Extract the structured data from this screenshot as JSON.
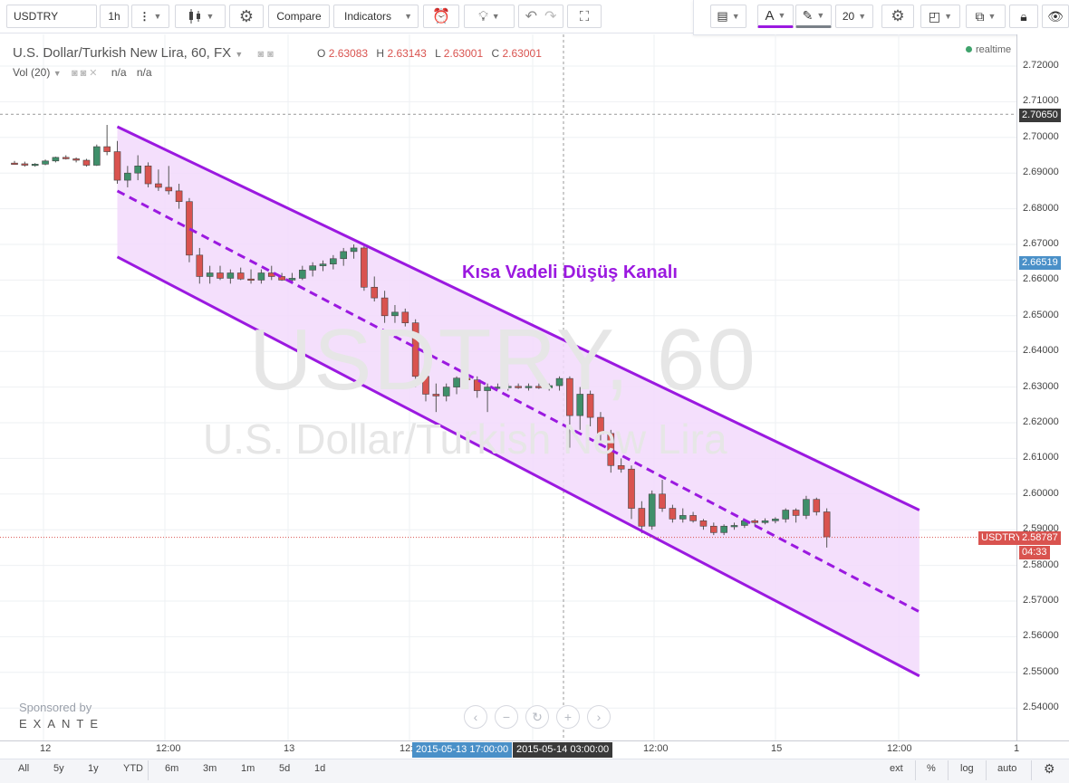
{
  "toolbar": {
    "symbol": "USDTRY",
    "interval": "1h",
    "compare": "Compare",
    "indicators": "Indicators",
    "font_size": "20"
  },
  "legend": {
    "title": "U.S. Dollar/Turkish New Lira, 60, FX",
    "o_label": "O",
    "o": "2.63083",
    "h_label": "H",
    "h": "2.63143",
    "l_label": "L",
    "l": "2.63001",
    "c_label": "C",
    "c": "2.63001",
    "vol": "Vol (20)",
    "na1": "n/a",
    "na2": "n/a",
    "realtime": "realtime"
  },
  "watermark": {
    "line1": "USDTRY, 60",
    "line2": "U.S. Dollar/Turkish New Lira"
  },
  "annotation": "Kısa Vadeli Düşüş Kanalı",
  "sponsor": {
    "label": "Sponsored by",
    "brand": "EXANTE"
  },
  "price_axis": {
    "ticks": [
      "2.72000",
      "2.71000",
      "2.70000",
      "2.69000",
      "2.68000",
      "2.67000",
      "2.66000",
      "2.65000",
      "2.64000",
      "2.63000",
      "2.62000",
      "2.61000",
      "2.60000",
      "2.59000",
      "2.58000",
      "2.57000",
      "2.56000",
      "2.55000",
      "2.54000"
    ],
    "hline_label": "2.70650",
    "channel_label": "2.66519",
    "symbol_tag": "USDTRY",
    "last_price": "2.58787",
    "countdown": "04:33"
  },
  "time_axis": {
    "ticks": [
      "12",
      "12:00",
      "13",
      "12:00",
      "15",
      "12:00",
      "1"
    ],
    "cursor_a": "2015-05-13 17:00:00",
    "cursor_b": "2015-05-14 03:00:00"
  },
  "ranges": [
    "All",
    "5y",
    "1y",
    "YTD",
    "6m",
    "3m",
    "1m",
    "5d",
    "1d"
  ],
  "bottom_right": [
    "ext",
    "%",
    "log",
    "auto"
  ],
  "colors": {
    "up": "#3f8f6a",
    "down": "#d9534f",
    "channel": "#9b19e0",
    "fill": "#f2d9fb",
    "tag_blue": "#4a90c8",
    "tag_dark": "#3a3a3a"
  },
  "chart_data": {
    "type": "candlestick",
    "interval": "60",
    "ylim": [
      2.535,
      2.725
    ],
    "candles": [
      [
        2.6928,
        2.6934,
        2.6924,
        2.6926
      ],
      [
        2.6926,
        2.6932,
        2.6918,
        2.6922
      ],
      [
        2.6922,
        2.6928,
        2.6918,
        2.6925
      ],
      [
        2.6925,
        2.6938,
        2.6922,
        2.6934
      ],
      [
        2.6934,
        2.6946,
        2.693,
        2.6944
      ],
      [
        2.6944,
        2.695,
        2.6938,
        2.694
      ],
      [
        2.694,
        2.6944,
        2.693,
        2.6936
      ],
      [
        2.6936,
        2.694,
        2.6918,
        2.6922
      ],
      [
        2.6922,
        2.698,
        2.692,
        2.6974
      ],
      [
        2.6974,
        2.7035,
        2.695,
        2.696
      ],
      [
        2.696,
        2.699,
        2.687,
        2.688
      ],
      [
        2.688,
        2.692,
        2.686,
        2.69
      ],
      [
        2.69,
        2.695,
        2.688,
        2.692
      ],
      [
        2.692,
        2.693,
        2.686,
        2.687
      ],
      [
        2.687,
        2.691,
        2.685,
        2.686
      ],
      [
        2.686,
        2.692,
        2.684,
        2.685
      ],
      [
        2.685,
        2.687,
        2.68,
        2.682
      ],
      [
        2.682,
        2.683,
        2.665,
        2.667
      ],
      [
        2.667,
        2.669,
        2.659,
        2.661
      ],
      [
        2.661,
        2.664,
        2.659,
        2.662
      ],
      [
        2.662,
        2.664,
        2.66,
        2.6605
      ],
      [
        2.6605,
        2.663,
        2.659,
        2.662
      ],
      [
        2.662,
        2.6635,
        2.66,
        2.6603
      ],
      [
        2.6603,
        2.663,
        2.659,
        2.66
      ],
      [
        2.66,
        2.663,
        2.659,
        2.662
      ],
      [
        2.662,
        2.664,
        2.66,
        2.661
      ],
      [
        2.661,
        2.662,
        2.6598,
        2.66
      ],
      [
        2.66,
        2.662,
        2.6595,
        2.6605
      ],
      [
        2.6605,
        2.664,
        2.66,
        2.6628
      ],
      [
        2.6628,
        2.665,
        2.661,
        2.664
      ],
      [
        2.664,
        2.6655,
        2.6625,
        2.6645
      ],
      [
        2.6645,
        2.667,
        2.663,
        2.666
      ],
      [
        2.666,
        2.669,
        2.664,
        2.668
      ],
      [
        2.668,
        2.67,
        2.666,
        2.669
      ],
      [
        2.669,
        2.67,
        2.657,
        2.658
      ],
      [
        2.658,
        2.661,
        2.654,
        2.655
      ],
      [
        2.655,
        2.657,
        2.648,
        2.65
      ],
      [
        2.65,
        2.653,
        2.648,
        2.651
      ],
      [
        2.651,
        2.652,
        2.647,
        2.648
      ],
      [
        2.648,
        2.649,
        2.63,
        2.633
      ],
      [
        2.633,
        2.634,
        2.626,
        2.628
      ],
      [
        2.628,
        2.631,
        2.623,
        2.6275
      ],
      [
        2.6275,
        2.631,
        2.626,
        2.63
      ],
      [
        2.63,
        2.633,
        2.628,
        2.6325
      ],
      [
        2.6325,
        2.634,
        2.63,
        2.632
      ],
      [
        2.632,
        2.633,
        2.627,
        2.629
      ],
      [
        2.629,
        2.631,
        2.623,
        2.63
      ],
      [
        2.63,
        2.631,
        2.6295,
        2.63
      ],
      [
        2.63,
        2.631,
        2.629,
        2.6302
      ],
      [
        2.6302,
        2.631,
        2.6295,
        2.6298
      ],
      [
        2.6298,
        2.631,
        2.629,
        2.6302
      ],
      [
        2.6302,
        2.631,
        2.6295,
        2.6298
      ],
      [
        2.6298,
        2.631,
        2.629,
        2.6304
      ],
      [
        2.6304,
        2.633,
        2.629,
        2.6324
      ],
      [
        2.6324,
        2.633,
        2.613,
        2.622
      ],
      [
        2.622,
        2.63,
        2.618,
        2.628
      ],
      [
        2.628,
        2.629,
        2.619,
        2.6215
      ],
      [
        2.6215,
        2.623,
        2.615,
        2.617
      ],
      [
        2.617,
        2.618,
        2.606,
        2.608
      ],
      [
        2.608,
        2.61,
        2.606,
        2.607
      ],
      [
        2.607,
        2.608,
        2.593,
        2.596
      ],
      [
        2.596,
        2.598,
        2.589,
        2.591
      ],
      [
        2.591,
        2.601,
        2.59,
        2.6
      ],
      [
        2.6,
        2.604,
        2.595,
        2.596
      ],
      [
        2.596,
        2.597,
        2.592,
        2.593
      ],
      [
        2.593,
        2.596,
        2.592,
        2.594
      ],
      [
        2.594,
        2.595,
        2.592,
        2.5925
      ],
      [
        2.5925,
        2.593,
        2.59,
        2.591
      ],
      [
        2.591,
        2.592,
        2.5885,
        2.5892
      ],
      [
        2.5892,
        2.5915,
        2.5885,
        2.591
      ],
      [
        2.591,
        2.592,
        2.59,
        2.5912
      ],
      [
        2.5912,
        2.593,
        2.5905,
        2.5925
      ],
      [
        2.5925,
        2.593,
        2.591,
        2.592
      ],
      [
        2.592,
        2.5932,
        2.5915,
        2.5925
      ],
      [
        2.5925,
        2.5935,
        2.5918,
        2.593
      ],
      [
        2.593,
        2.596,
        2.592,
        2.5955
      ],
      [
        2.5955,
        2.596,
        2.592,
        2.594
      ],
      [
        2.594,
        2.5995,
        2.593,
        2.5985
      ],
      [
        2.5985,
        2.599,
        2.594,
        2.595
      ],
      [
        2.595,
        2.596,
        2.585,
        2.588
      ]
    ],
    "channel": {
      "upper": [
        [
          10,
          2.703
        ],
        [
          88,
          2.5955
        ]
      ],
      "middle": [
        [
          10,
          2.685
        ],
        [
          88,
          2.567
        ]
      ],
      "lower": [
        [
          10,
          2.6665
        ],
        [
          88,
          2.549
        ]
      ]
    },
    "hline": 2.7065,
    "last": 2.58787
  }
}
